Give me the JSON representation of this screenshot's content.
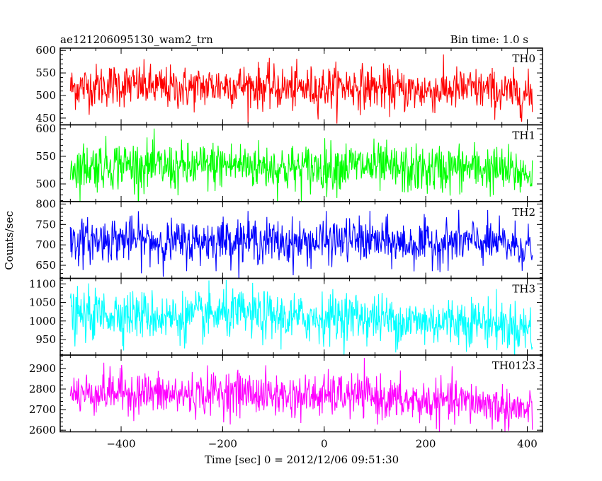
{
  "header": {
    "title": "ae121206095130_wam2_trn",
    "bin_time": "Bin time: 1.0 s"
  },
  "chart_data": {
    "type": "line",
    "xlabel": "Time [sec] 0 = 2012/12/06 09:51:30",
    "ylabel": "Counts/sec",
    "xlim": [
      -520,
      430
    ],
    "x_range_data": [
      -500,
      410
    ],
    "xticks": [
      -400,
      -200,
      0,
      200,
      400
    ],
    "x_tick_labels": [
      "−400",
      "−200",
      "0",
      "200",
      "400"
    ],
    "panels": [
      {
        "name": "TH0",
        "color": "#ff0000",
        "ylim": [
          435,
          605
        ],
        "yticks": [
          450,
          500,
          550,
          600
        ],
        "y_tick_labels": [
          "450",
          "500",
          "550",
          "600"
        ],
        "mean": 520,
        "sd": 24,
        "end_mean": 505
      },
      {
        "name": "TH1",
        "color": "#00ff00",
        "ylim": [
          468,
          607
        ],
        "yticks": [
          500,
          550,
          600
        ],
        "y_tick_labels": [
          "500",
          "550",
          "600"
        ],
        "mean": 532,
        "sd": 22,
        "end_mean": 522
      },
      {
        "name": "TH2",
        "color": "#0000ff",
        "ylim": [
          618,
          806
        ],
        "yticks": [
          650,
          700,
          750,
          800
        ],
        "y_tick_labels": [
          "650",
          "700",
          "750",
          "800"
        ],
        "mean": 710,
        "sd": 27,
        "end_mean": 700
      },
      {
        "name": "TH3",
        "color": "#00ffff",
        "ylim": [
          908,
          1115
        ],
        "yticks": [
          950,
          1000,
          1050,
          1100
        ],
        "y_tick_labels": [
          "950",
          "1000",
          "1050",
          "1100"
        ],
        "mean": 1015,
        "sd": 33,
        "end_mean": 985
      },
      {
        "name": "TH0123",
        "color": "#ff00ff",
        "ylim": [
          2592,
          2965
        ],
        "yticks": [
          2600,
          2700,
          2800,
          2900
        ],
        "y_tick_labels": [
          "2600",
          "2700",
          "2800",
          "2900"
        ],
        "mean": 2780,
        "sd": 52,
        "end_mean": 2700
      }
    ]
  }
}
